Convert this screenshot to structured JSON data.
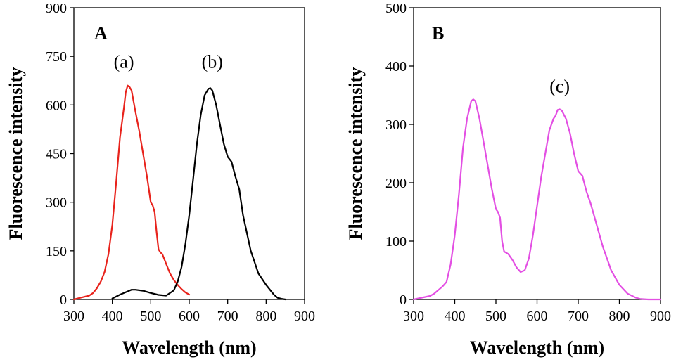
{
  "chart_data": [
    {
      "type": "line",
      "panel_label": "A",
      "xlabel": "Wavelength (nm)",
      "ylabel": "Fluorescence intensity",
      "xlim": [
        300,
        900
      ],
      "ylim": [
        0,
        900
      ],
      "x_ticks": [
        300,
        400,
        500,
        600,
        700,
        800,
        900
      ],
      "y_ticks": [
        0,
        150,
        300,
        450,
        600,
        750,
        900
      ],
      "grid": false,
      "annotations": [
        {
          "text": "(a)",
          "x": 430,
          "y": 715
        },
        {
          "text": "(b)",
          "x": 660,
          "y": 715
        }
      ],
      "series": [
        {
          "color": "#e8231c",
          "x": [
            300,
            320,
            340,
            350,
            360,
            370,
            380,
            390,
            400,
            410,
            420,
            430,
            435,
            440,
            445,
            450,
            460,
            470,
            480,
            490,
            500,
            505,
            510,
            515,
            520,
            525,
            530,
            540,
            550,
            560,
            570,
            580,
            590,
            600
          ],
          "y": [
            0,
            6,
            12,
            20,
            35,
            55,
            85,
            140,
            230,
            360,
            500,
            590,
            640,
            660,
            655,
            645,
            580,
            520,
            450,
            380,
            300,
            290,
            270,
            210,
            155,
            145,
            140,
            110,
            80,
            60,
            45,
            32,
            22,
            15
          ]
        },
        {
          "color": "#000000",
          "x": [
            400,
            420,
            440,
            450,
            460,
            480,
            500,
            520,
            540,
            560,
            570,
            580,
            590,
            600,
            610,
            620,
            630,
            640,
            650,
            655,
            660,
            670,
            680,
            690,
            700,
            710,
            720,
            730,
            740,
            760,
            780,
            800,
            820,
            830,
            840,
            850
          ],
          "y": [
            3,
            15,
            25,
            30,
            30,
            27,
            20,
            14,
            12,
            28,
            55,
            100,
            170,
            260,
            370,
            480,
            570,
            630,
            650,
            652,
            645,
            600,
            540,
            480,
            440,
            425,
            380,
            340,
            260,
            150,
            80,
            45,
            15,
            5,
            2,
            0
          ]
        }
      ]
    },
    {
      "type": "line",
      "panel_label": "B",
      "xlabel": "Wavelength (nm)",
      "ylabel": "Fluorescence intensity",
      "xlim": [
        300,
        900
      ],
      "ylim": [
        0,
        500
      ],
      "x_ticks": [
        300,
        400,
        500,
        600,
        700,
        800,
        900
      ],
      "y_ticks": [
        0,
        100,
        200,
        300,
        400,
        500
      ],
      "grid": false,
      "annotations": [
        {
          "text": "(c)",
          "x": 655,
          "y": 355
        }
      ],
      "series": [
        {
          "color": "#e34fe3",
          "x": [
            300,
            320,
            340,
            350,
            360,
            370,
            380,
            390,
            400,
            410,
            420,
            430,
            440,
            445,
            450,
            460,
            470,
            480,
            490,
            500,
            505,
            510,
            515,
            520,
            525,
            530,
            540,
            550,
            560,
            570,
            580,
            590,
            600,
            610,
            620,
            630,
            640,
            645,
            650,
            655,
            660,
            670,
            680,
            690,
            700,
            710,
            720,
            730,
            740,
            760,
            780,
            800,
            820,
            840,
            850,
            870,
            900
          ],
          "y": [
            0,
            3,
            6,
            10,
            16,
            22,
            30,
            60,
            110,
            180,
            260,
            310,
            340,
            343,
            340,
            310,
            270,
            230,
            190,
            155,
            150,
            140,
            100,
            82,
            80,
            78,
            68,
            55,
            47,
            50,
            70,
            110,
            160,
            210,
            250,
            290,
            310,
            315,
            325,
            326,
            324,
            310,
            285,
            250,
            220,
            212,
            185,
            165,
            140,
            90,
            50,
            25,
            10,
            3,
            1,
            0,
            0
          ]
        }
      ]
    }
  ]
}
